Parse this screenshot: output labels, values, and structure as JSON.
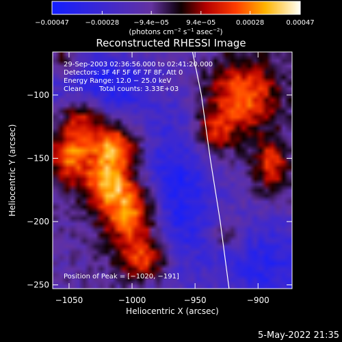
{
  "chart_data": {
    "type": "heatmap",
    "title": "Reconstructed RHESSI Image",
    "xlabel": "Heliocentric X (arcsec)",
    "ylabel": "Heliocentric Y (arcsec)",
    "xlim": [
      -1063,
      -873
    ],
    "ylim": [
      -253,
      -66
    ],
    "x_ticks": [
      -1050,
      -1000,
      -950,
      -900
    ],
    "y_ticks": [
      -100,
      -150,
      -200,
      -250
    ],
    "x_tick_labels": [
      "−1050",
      "−1000",
      "−950",
      "−900"
    ],
    "y_tick_labels": [
      "−100",
      "−150",
      "−200",
      "−250"
    ],
    "colorbar": {
      "min": -0.00047,
      "max": 0.00047,
      "ticks": [
        -0.00047,
        -0.00028,
        -9.4e-05,
        9.4e-05,
        0.00028,
        0.00047
      ],
      "tick_labels": [
        "−0.00047",
        "−0.00028",
        "−9.4e−05",
        "9.4e−05",
        "0.00028",
        "0.00047"
      ],
      "units_main": "(photons cm",
      "units_exp1": "−2",
      "units_mid": " s",
      "units_exp2": "−1",
      "units_tail": " asec",
      "units_exp3": "−2",
      "units_close": ")"
    },
    "annotations": {
      "time": "29-Sep-2003 02:36:56.000 to 02:41:20.000",
      "detectors": "Detectors: 3F 4F 5F 6F 7F 8F, Att 0",
      "energy": "Energy Range: 12.0 − 25.0 keV",
      "method": "Clean",
      "counts": "Total counts: 3.33E+03",
      "peak": "Position of Peak = [−1020, −191]"
    },
    "limb": [
      [
        -952,
        -66
      ],
      [
        -945,
        -100
      ],
      [
        -938,
        -150
      ],
      [
        -930,
        -200
      ],
      [
        -923,
        -253
      ]
    ],
    "sources": [
      {
        "x": -1000,
        "y": -195,
        "sx": 16,
        "sy": 18,
        "amp": 0.00045
      },
      {
        "x": -1020,
        "y": -170,
        "sx": 14,
        "sy": 14,
        "amp": 0.0004
      },
      {
        "x": -1015,
        "y": -140,
        "sx": 14,
        "sy": 14,
        "amp": 0.00042
      },
      {
        "x": -1040,
        "y": -115,
        "sx": 14,
        "sy": 16,
        "amp": 0.00038
      },
      {
        "x": -1050,
        "y": -150,
        "sx": 10,
        "sy": 14,
        "amp": 0.00035
      },
      {
        "x": -990,
        "y": -230,
        "sx": 14,
        "sy": 12,
        "amp": 0.00036
      },
      {
        "x": -1055,
        "y": -75,
        "sx": 10,
        "sy": 10,
        "amp": 0.00025
      },
      {
        "x": -912,
        "y": -100,
        "sx": 20,
        "sy": 20,
        "amp": 0.00038
      },
      {
        "x": -935,
        "y": -130,
        "sx": 12,
        "sy": 12,
        "amp": 0.0003
      },
      {
        "x": -890,
        "y": -155,
        "sx": 10,
        "sy": 14,
        "amp": 0.00032
      },
      {
        "x": -925,
        "y": -210,
        "sx": 8,
        "sy": 8,
        "amp": 0.0002
      },
      {
        "x": -1030,
        "y": -95,
        "sx": 30,
        "sy": 20,
        "amp": -0.00035
      },
      {
        "x": -965,
        "y": -180,
        "sx": 22,
        "sy": 45,
        "amp": -0.0003
      },
      {
        "x": -890,
        "y": -235,
        "sx": 30,
        "sy": 25,
        "amp": -0.00025
      }
    ],
    "grid": false
  },
  "footer": {
    "timestamp": "5-May-2022 21:35"
  },
  "colors": {
    "background": "#000000",
    "text": "#ffffff",
    "limb": "#ffffff"
  }
}
